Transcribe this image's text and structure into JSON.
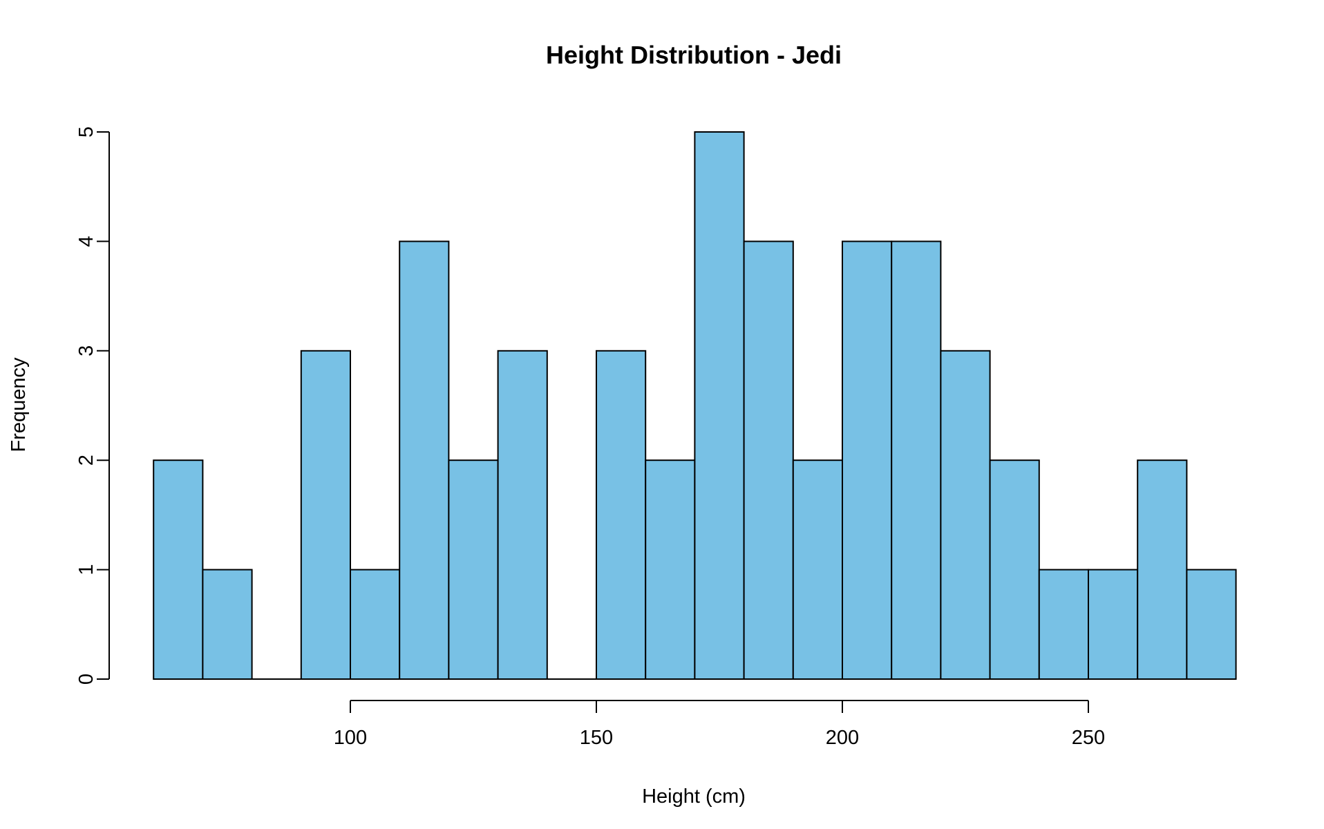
{
  "chart_data": {
    "type": "bar",
    "title": "Height Distribution - Jedi",
    "xlabel": "Height (cm)",
    "ylabel": "Frequency",
    "bins": [
      {
        "start": 60,
        "end": 70,
        "count": 2
      },
      {
        "start": 70,
        "end": 80,
        "count": 1
      },
      {
        "start": 80,
        "end": 90,
        "count": 0
      },
      {
        "start": 90,
        "end": 100,
        "count": 3
      },
      {
        "start": 100,
        "end": 110,
        "count": 1
      },
      {
        "start": 110,
        "end": 120,
        "count": 4
      },
      {
        "start": 120,
        "end": 130,
        "count": 2
      },
      {
        "start": 130,
        "end": 140,
        "count": 3
      },
      {
        "start": 140,
        "end": 150,
        "count": 0
      },
      {
        "start": 150,
        "end": 160,
        "count": 3
      },
      {
        "start": 160,
        "end": 170,
        "count": 2
      },
      {
        "start": 170,
        "end": 180,
        "count": 5
      },
      {
        "start": 180,
        "end": 190,
        "count": 4
      },
      {
        "start": 190,
        "end": 200,
        "count": 2
      },
      {
        "start": 200,
        "end": 210,
        "count": 4
      },
      {
        "start": 210,
        "end": 220,
        "count": 4
      },
      {
        "start": 220,
        "end": 230,
        "count": 3
      },
      {
        "start": 230,
        "end": 240,
        "count": 2
      },
      {
        "start": 240,
        "end": 250,
        "count": 1
      },
      {
        "start": 250,
        "end": 260,
        "count": 1
      },
      {
        "start": 260,
        "end": 270,
        "count": 2
      },
      {
        "start": 270,
        "end": 280,
        "count": 1
      }
    ],
    "xlim": [
      60,
      280
    ],
    "ylim": [
      0,
      5
    ],
    "x_ticks": [
      100,
      150,
      200,
      250
    ],
    "y_ticks": [
      0,
      1,
      2,
      3,
      4,
      5
    ],
    "x_tick_labels": [
      "100",
      "150",
      "200",
      "250"
    ],
    "y_tick_labels": [
      "0",
      "1",
      "2",
      "3",
      "4",
      "5"
    ],
    "grid": false,
    "legend": "none",
    "colors": {
      "bar_fill": "#78C1E5",
      "bar_edge": "#000000",
      "axis": "#000000",
      "background": "#ffffff"
    }
  }
}
